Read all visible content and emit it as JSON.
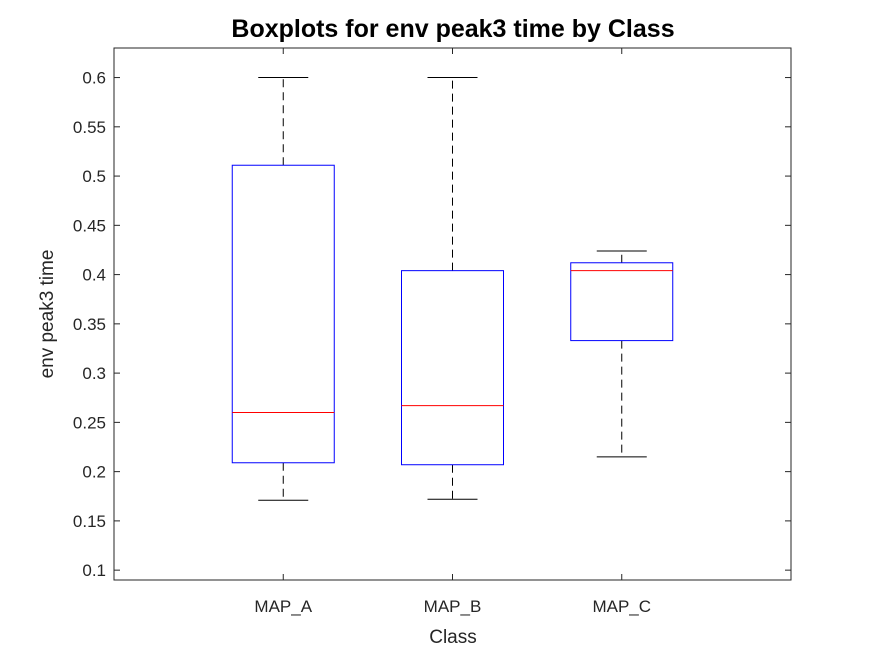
{
  "chart_data": {
    "type": "boxplot",
    "title": "Boxplots for env peak3 time by Class",
    "xlabel": "Class",
    "ylabel": "env peak3 time",
    "categories": [
      "MAP_A",
      "MAP_B",
      "MAP_C"
    ],
    "ylim": [
      0.09,
      0.63
    ],
    "yticks": [
      0.1,
      0.15,
      0.2,
      0.25,
      0.3,
      0.35,
      0.4,
      0.45,
      0.5,
      0.55,
      0.6
    ],
    "ytick_labels": [
      "0.1",
      "0.15",
      "0.2",
      "0.25",
      "0.3",
      "0.35",
      "0.4",
      "0.45",
      "0.5",
      "0.55",
      "0.6"
    ],
    "boxes": [
      {
        "category": "MAP_A",
        "whisker_low": 0.171,
        "q1": 0.209,
        "median": 0.26,
        "q3": 0.511,
        "whisker_high": 0.6
      },
      {
        "category": "MAP_B",
        "whisker_low": 0.172,
        "q1": 0.207,
        "median": 0.267,
        "q3": 0.404,
        "whisker_high": 0.6
      },
      {
        "category": "MAP_C",
        "whisker_low": 0.215,
        "q1": 0.333,
        "median": 0.404,
        "q3": 0.412,
        "whisker_high": 0.424
      }
    ],
    "grid": false,
    "colors": {
      "box": "#0000ff",
      "median": "#ff0000",
      "whisker": "#000000"
    }
  }
}
